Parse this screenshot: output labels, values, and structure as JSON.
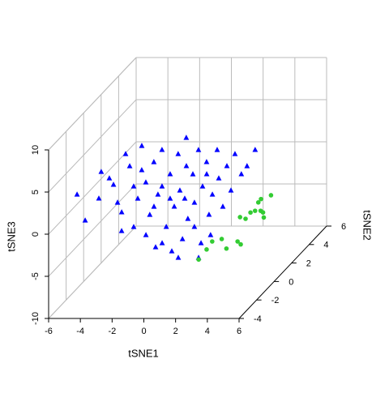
{
  "chart_data": {
    "type": "scatter3d",
    "xlabel": "tSNE1",
    "ylabel": "tSNE2",
    "zlabel": "tSNE3",
    "xlim": [
      -6,
      6
    ],
    "ylim": [
      -4,
      6
    ],
    "zlim": [
      -10,
      10
    ],
    "xticks": [
      -6,
      -4,
      -2,
      0,
      2,
      4,
      6
    ],
    "yticks": [
      -4,
      -2,
      0,
      2,
      4,
      6
    ],
    "zticks": [
      -10,
      -5,
      0,
      5,
      10
    ],
    "grid": true,
    "series": [
      {
        "color": "#0000ff",
        "shape": "triangle",
        "x": [
          -4.76,
          -4.8,
          -5.04,
          -4.34,
          -4.67,
          -2.5,
          -1.7,
          -4.2,
          -1.19,
          -3.14,
          -3.99,
          -2.08,
          -1.28,
          -3.78,
          0.19,
          -2.42,
          -3.82,
          0.31,
          -1.1,
          1.21,
          -0.29,
          -2.25,
          -1.59,
          1.33,
          -2.29,
          1.12,
          -0.22,
          0.43,
          -0.97,
          2.5,
          -0.16,
          -1.01,
          1.9,
          1.01,
          0.76,
          0.31,
          2.22,
          0.27,
          2.18,
          1.33,
          1.18,
          2.09,
          2.05,
          3.45,
          0.6,
          -0.42,
          -1.4,
          -4.38,
          -3.95,
          -1.18,
          0.0,
          -2.12,
          2.55,
          2.17,
          -2.89,
          0.98,
          -1.06,
          0.1,
          -0.18,
          -2.76
        ],
        "y": [
          -3,
          -2,
          0,
          -1,
          1,
          -2,
          -3,
          2,
          -3,
          1,
          3,
          0,
          -1,
          4,
          -3,
          2,
          5,
          -2,
          1,
          -3,
          0,
          4,
          3,
          -2,
          5,
          -1,
          2,
          1,
          4,
          -2,
          3,
          5,
          0,
          2,
          3,
          4,
          1,
          5,
          2,
          4,
          5,
          4,
          5,
          -4,
          -3,
          -3,
          -4,
          0,
          2,
          3,
          -1,
          1,
          -1,
          -4,
          1,
          0,
          0,
          3,
          1,
          -2
        ],
        "z": [
          3.61,
          -0.56,
          -0.15,
          4.11,
          0.39,
          0.41,
          8.42,
          1.5,
          -0.23,
          -1.25,
          2.81,
          1.77,
          -0.98,
          -0.21,
          -2.64,
          -1.87,
          0.14,
          -1.32,
          1.64,
          -3.12,
          -1.11,
          0.75,
          -2.48,
          -2.77,
          1.58,
          -1.46,
          0.54,
          -1.73,
          1.23,
          -3.25,
          -2.0,
          -1.3,
          -2.07,
          -1.87,
          2.33,
          -2.14,
          -2.21,
          -1.78,
          -1.39,
          0.75,
          -2.74,
          -0.69,
          0.14,
          -2.79,
          -2.16,
          -1.2,
          0.38,
          2.25,
          -0.91,
          0.41,
          0.94,
          -2.21,
          -3.39,
          -2.79,
          2.12,
          -3.51,
          1.29,
          -0.55,
          -1.25,
          1.56
        ]
      },
      {
        "color": "#33cc33",
        "shape": "circle",
        "x": [
          1.8,
          2.3,
          2.1,
          2.7,
          4.1,
          3.7,
          4.45,
          2.2,
          3.1,
          2.86,
          3.7,
          3.5,
          2.8,
          4.2,
          3.6,
          2.97,
          4.8
        ],
        "y": [
          -1,
          -1,
          0,
          0,
          -2,
          0,
          -1,
          3,
          2,
          3,
          2,
          3,
          4,
          2,
          4,
          4,
          1
        ],
        "z": [
          -6.3,
          -5.1,
          -5.25,
          -4.96,
          -3.9,
          -5.25,
          -4.5,
          -5.65,
          -4.75,
          -5.1,
          -3.8,
          -4.9,
          -5.0,
          -4.0,
          -4.15,
          -4.6,
          -3.5
        ]
      }
    ]
  }
}
